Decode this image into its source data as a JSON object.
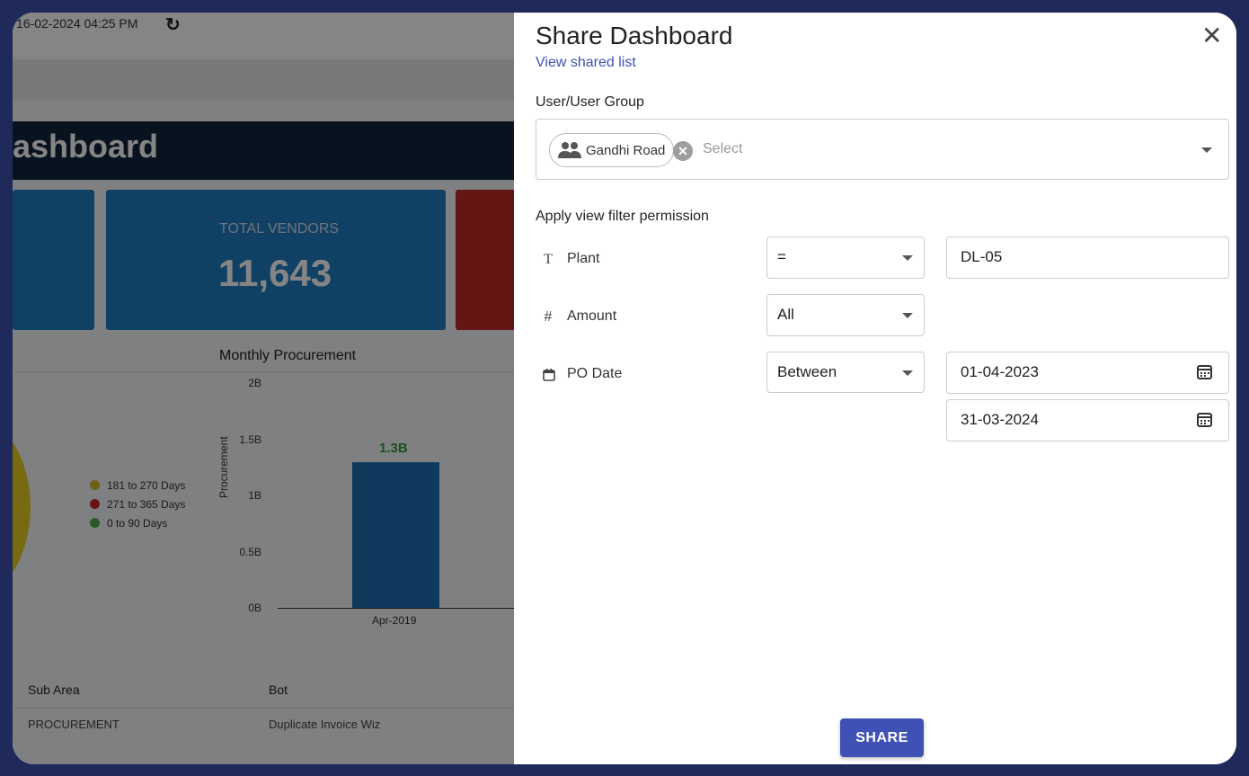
{
  "background": {
    "timestamp": "16-02-2024 04:25 PM",
    "refresh_icon": "refresh-icon",
    "title": "ashboard",
    "card_label": "TOTAL VENDORS",
    "card_value": "11,643",
    "section_title": "Monthly Procurement",
    "legend": [
      {
        "label": "181 to 270 Days",
        "color": "#d4b82a"
      },
      {
        "label": "271 to 365 Days",
        "color": "#c62828"
      },
      {
        "label": "0 to 90 Days",
        "color": "#4caf50"
      }
    ],
    "table": {
      "headers": [
        "Sub Area",
        "Bot"
      ],
      "row": [
        "PROCUREMENT",
        "Duplicate Invoice Wiz"
      ]
    }
  },
  "chart_data": {
    "type": "bar",
    "title": "Monthly Procurement",
    "ylabel": "Procurement",
    "xlabel": "",
    "categories": [
      "Apr-2019"
    ],
    "values": [
      1300000000
    ],
    "value_labels": [
      "1.3B"
    ],
    "yticks": [
      "2B",
      "1.5B",
      "1B",
      "0.5B",
      "0B"
    ],
    "ylim": [
      0,
      2000000000
    ],
    "grid": false
  },
  "drawer": {
    "title": "Share Dashboard",
    "view_shared_link": "View shared list",
    "user_group_label": "User/User Group",
    "chip_label": "Gandhi Road",
    "chip_icon": "group-icon",
    "select_placeholder": "Select",
    "filter_heading": "Apply view filter permission",
    "filters": [
      {
        "icon": "T",
        "icon_name": "text-type-icon",
        "label": "Plant",
        "operator": "=",
        "values": [
          "DL-05"
        ]
      },
      {
        "icon": "#",
        "icon_name": "number-type-icon",
        "label": "Amount",
        "operator": "All",
        "values": []
      },
      {
        "icon": "calendar",
        "icon_name": "calendar-type-icon",
        "label": "PO Date",
        "operator": "Between",
        "values": [
          "01-04-2023",
          "31-03-2024"
        ]
      }
    ],
    "share_button": "SHARE",
    "colors": {
      "primary": "#3f51b5",
      "link": "#3f51b5"
    }
  }
}
